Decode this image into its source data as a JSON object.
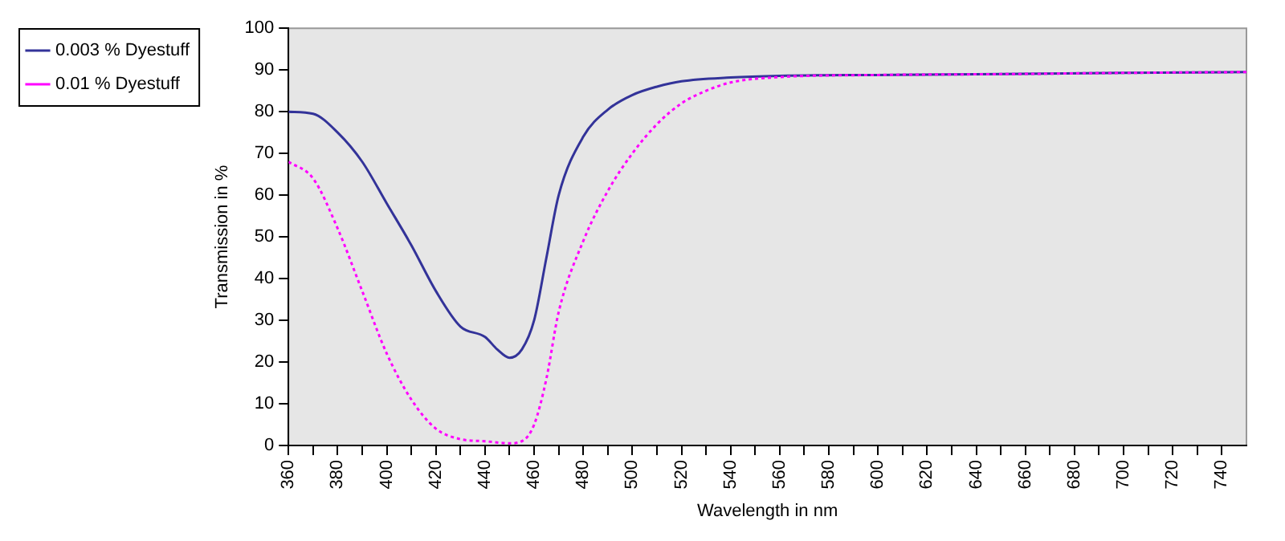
{
  "chart_data": {
    "type": "line",
    "xlabel": "Wavelength in nm",
    "ylabel": "Transmission in %",
    "series": [
      {
        "name": "0.003 % Dyestuff",
        "color": "#333399",
        "line_style": "solid",
        "x": [
          360,
          370,
          380,
          390,
          400,
          410,
          420,
          430,
          440,
          445,
          450,
          455,
          460,
          465,
          470,
          480,
          490,
          500,
          510,
          520,
          540,
          560,
          600,
          650,
          700,
          750
        ],
        "values": [
          80,
          79.5,
          75,
          68,
          58,
          48,
          37,
          28.5,
          26,
          23,
          21,
          23,
          30,
          45,
          60,
          74,
          80.5,
          84,
          86,
          87.3,
          88.2,
          88.6,
          88.8,
          89,
          89.3,
          89.5
        ]
      },
      {
        "name": "0.01 % Dyestuff",
        "color": "#ff00ff",
        "line_style": "dotted",
        "x": [
          360,
          370,
          380,
          390,
          400,
          410,
          420,
          430,
          440,
          450,
          455,
          460,
          465,
          470,
          480,
          490,
          500,
          510,
          520,
          530,
          540,
          560,
          600,
          650,
          700,
          750
        ],
        "values": [
          68,
          64,
          52,
          37,
          22,
          11,
          4,
          1.5,
          1,
          0.5,
          1,
          5,
          16,
          32,
          49,
          61,
          70,
          77,
          82,
          85,
          87,
          88.3,
          88.8,
          89,
          89.3,
          89.5
        ]
      }
    ],
    "xlim": [
      360,
      750
    ],
    "xticks": [
      360,
      {
        "value": 370,
        "label": null
      },
      380,
      {
        "value": 390,
        "label": null
      },
      400,
      {
        "value": 410,
        "label": null
      },
      420,
      {
        "value": 430,
        "label": null
      },
      440,
      {
        "value": 450,
        "label": null
      },
      460,
      {
        "value": 470,
        "label": null
      },
      480,
      {
        "value": 490,
        "label": null
      },
      500,
      {
        "value": 510,
        "label": null
      },
      520,
      {
        "value": 530,
        "label": null
      },
      540,
      {
        "value": 550,
        "label": null
      },
      560,
      {
        "value": 570,
        "label": null
      },
      580,
      {
        "value": 590,
        "label": null
      },
      600,
      {
        "value": 610,
        "label": null
      },
      620,
      {
        "value": 630,
        "label": null
      },
      640,
      {
        "value": 650,
        "label": null
      },
      660,
      {
        "value": 670,
        "label": null
      },
      680,
      {
        "value": 690,
        "label": null
      },
      700,
      {
        "value": 710,
        "label": null
      },
      720,
      {
        "value": 730,
        "label": null
      },
      740
    ],
    "ylim": [
      0,
      100
    ],
    "yticks": [
      0,
      10,
      20,
      30,
      40,
      50,
      60,
      70,
      80,
      90,
      100
    ],
    "grid": false,
    "legend": "top left",
    "marker": "none"
  }
}
